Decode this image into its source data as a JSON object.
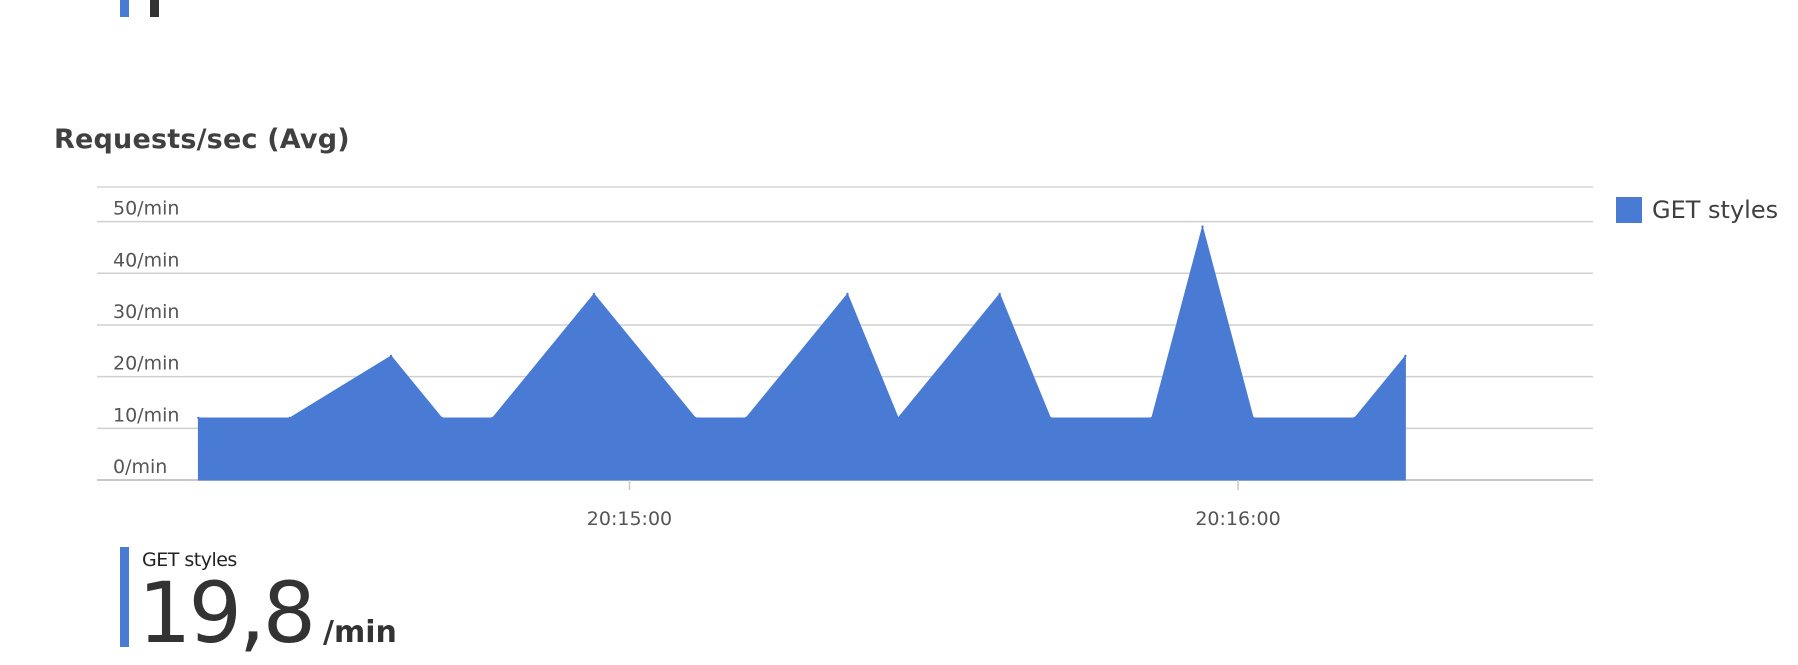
{
  "chart_data": {
    "type": "area",
    "title": "Requests/sec (Avg)",
    "color": "#4a7bd4",
    "y_unit": "/min",
    "yticks": [
      0,
      10,
      20,
      30,
      40,
      50
    ],
    "ytick_labels": [
      "0/min",
      "10/min",
      "20/min",
      "30/min",
      "40/min",
      "50/min"
    ],
    "ylim": [
      0,
      56.7
    ],
    "xlim": [
      "20:14:07.5",
      "20:16:35"
    ],
    "xticks": [
      "20:15:00",
      "20:16:00"
    ],
    "grid": true,
    "legend_position": "right",
    "series": [
      {
        "name": "GET styles",
        "points": [
          {
            "t": "20:14:17.5",
            "v": 12
          },
          {
            "t": "20:14:26.5",
            "v": 12
          },
          {
            "t": "20:14:36.5",
            "v": 24
          },
          {
            "t": "20:14:41.5",
            "v": 12
          },
          {
            "t": "20:14:46.5",
            "v": 12
          },
          {
            "t": "20:14:56.5",
            "v": 36
          },
          {
            "t": "20:15:06.5",
            "v": 12
          },
          {
            "t": "20:15:11.5",
            "v": 12
          },
          {
            "t": "20:15:21.5",
            "v": 36
          },
          {
            "t": "20:15:26.5",
            "v": 12
          },
          {
            "t": "20:15:36.5",
            "v": 36
          },
          {
            "t": "20:15:41.5",
            "v": 12
          },
          {
            "t": "20:15:51.5",
            "v": 12
          },
          {
            "t": "20:15:56.5",
            "v": 49
          },
          {
            "t": "20:16:01.5",
            "v": 12
          },
          {
            "t": "20:16:11.5",
            "v": 12
          },
          {
            "t": "20:16:16.5",
            "v": 24
          }
        ]
      }
    ]
  },
  "summary": {
    "name": "GET styles",
    "value": "19,8",
    "unit": "/min"
  }
}
